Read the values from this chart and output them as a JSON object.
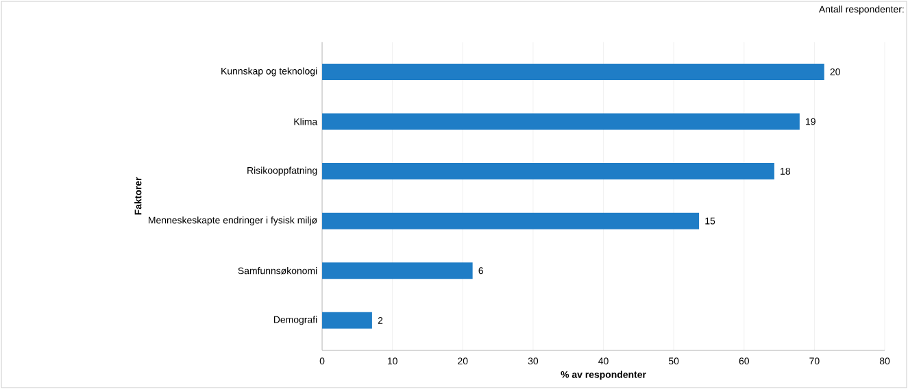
{
  "chart_data": {
    "type": "bar",
    "orientation": "horizontal",
    "categories": [
      "Kunnskap og teknologi",
      "Klima",
      "Risikooppfatning",
      "Menneskeskapte endringer i fysisk miljø",
      "Samfunnsøkonomi",
      "Demografi"
    ],
    "values": [
      71.4,
      67.9,
      64.3,
      53.6,
      21.4,
      7.1
    ],
    "color": "#1f7dc6",
    "xlim": [
      0,
      80
    ],
    "xticks": [
      0,
      10,
      20,
      30,
      40,
      50,
      60,
      70,
      80
    ],
    "grid": "x",
    "xlabel": "% av respondenter",
    "ylabel": "Faktorer",
    "annotations": [
      "Antall respondenter:",
      {
        "text": "20",
        "x": 71.4,
        "y": "Kunnskap og teknologi"
      },
      {
        "text": "19",
        "x": 67.9,
        "y": "Klima"
      },
      {
        "text": "18",
        "x": 64.3,
        "y": "Risikooppfatning"
      },
      {
        "text": "15",
        "x": 53.6,
        "y": "Menneskeskapte endringer i fysisk miljø"
      },
      {
        "text": "6",
        "x": 21.4,
        "y": "Samfunnsøkonomi"
      },
      {
        "text": "2",
        "x": 7.1,
        "y": "Demografi"
      }
    ]
  }
}
